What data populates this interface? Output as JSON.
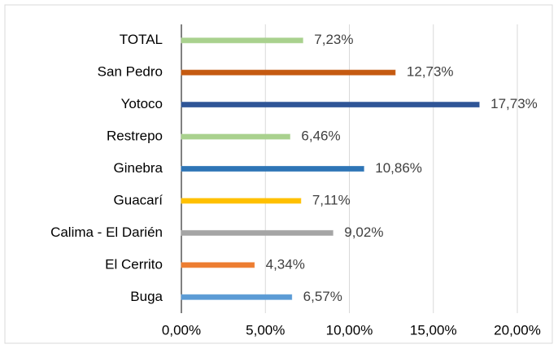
{
  "chart_data": {
    "type": "hbar",
    "categories": [
      "TOTAL",
      "San Pedro",
      "Yotoco",
      "Restrepo",
      "Ginebra",
      "Guacarí",
      "Calima - El Darién",
      "El Cerrito",
      "Buga"
    ],
    "values": [
      7.23,
      12.73,
      17.73,
      6.46,
      10.86,
      7.11,
      9.02,
      4.34,
      6.57
    ],
    "value_labels": [
      "7,23%",
      "12,73%",
      "17,73%",
      "6,46%",
      "10,86%",
      "7,11%",
      "9,02%",
      "4,34%",
      "6,57%"
    ],
    "colors": [
      "#a9d18e",
      "#c55a11",
      "#2f5597",
      "#a9d18e",
      "#2e75b6",
      "#ffc000",
      "#a5a5a5",
      "#ed7d31",
      "#5b9bd5"
    ],
    "xlim": [
      0,
      20
    ],
    "xticks": [
      {
        "value": 0,
        "label": "0,00%"
      },
      {
        "value": 5,
        "label": "5,00%"
      },
      {
        "value": 10,
        "label": "10,00%"
      },
      {
        "value": 15,
        "label": "15,00%"
      },
      {
        "value": 20,
        "label": "20,00%"
      }
    ],
    "grid": true
  }
}
